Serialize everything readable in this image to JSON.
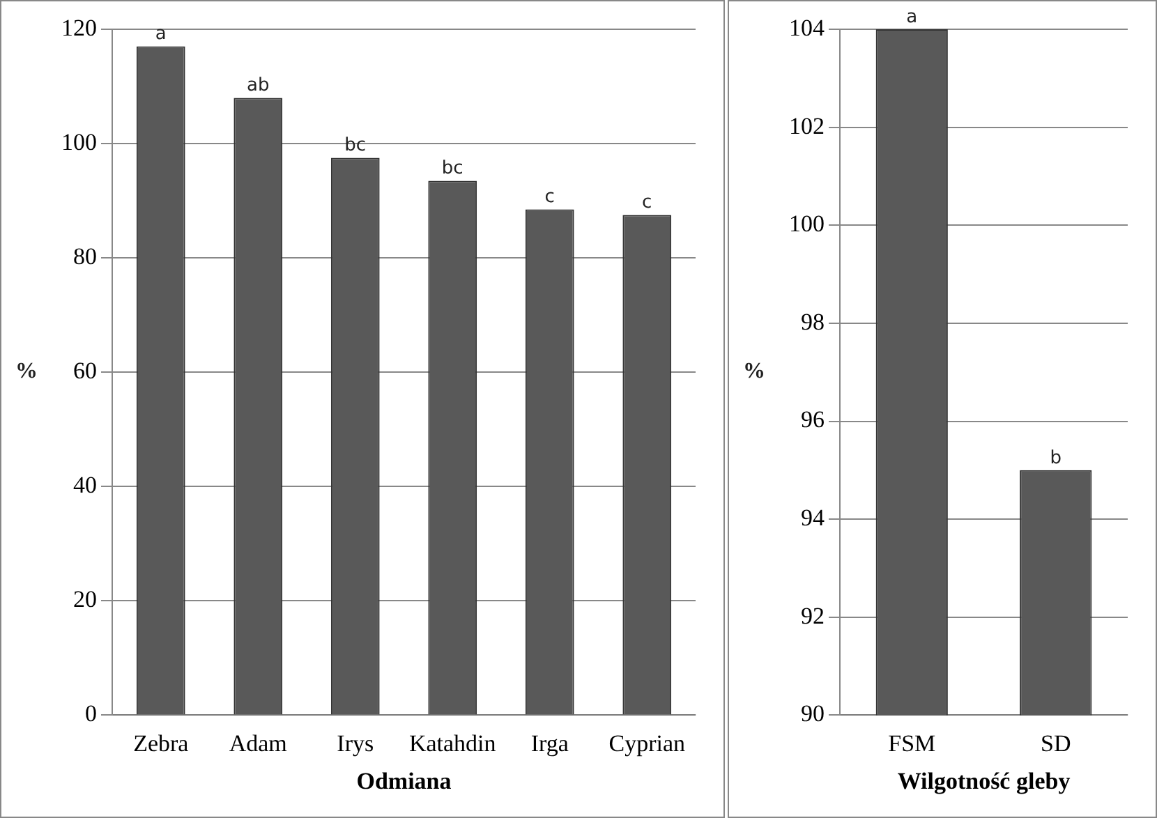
{
  "chart_data": [
    {
      "type": "bar",
      "categories": [
        "Zebra",
        "Adam",
        "Irys",
        "Katahdin",
        "Irga",
        "Cyprian"
      ],
      "values": [
        117,
        108,
        97.5,
        93.5,
        88.5,
        87.5
      ],
      "color": "#595959",
      "value_labels": [
        "a",
        "ab",
        "bc",
        "bc",
        "c",
        "c"
      ],
      "xlabel": "Odmiana",
      "ylabel": "%",
      "ylim": [
        0,
        120
      ],
      "yticks": [
        0,
        20,
        40,
        60,
        80,
        100,
        120
      ],
      "grid": "y"
    },
    {
      "type": "bar",
      "categories": [
        "FSM",
        "SD"
      ],
      "values": [
        104,
        95
      ],
      "color": "#595959",
      "value_labels": [
        "a",
        "b"
      ],
      "xlabel": "Wilgotność gleby",
      "ylabel": "%",
      "ylim": [
        90,
        104
      ],
      "yticks": [
        90,
        92,
        94,
        96,
        98,
        100,
        102,
        104
      ],
      "grid": "y"
    }
  ]
}
